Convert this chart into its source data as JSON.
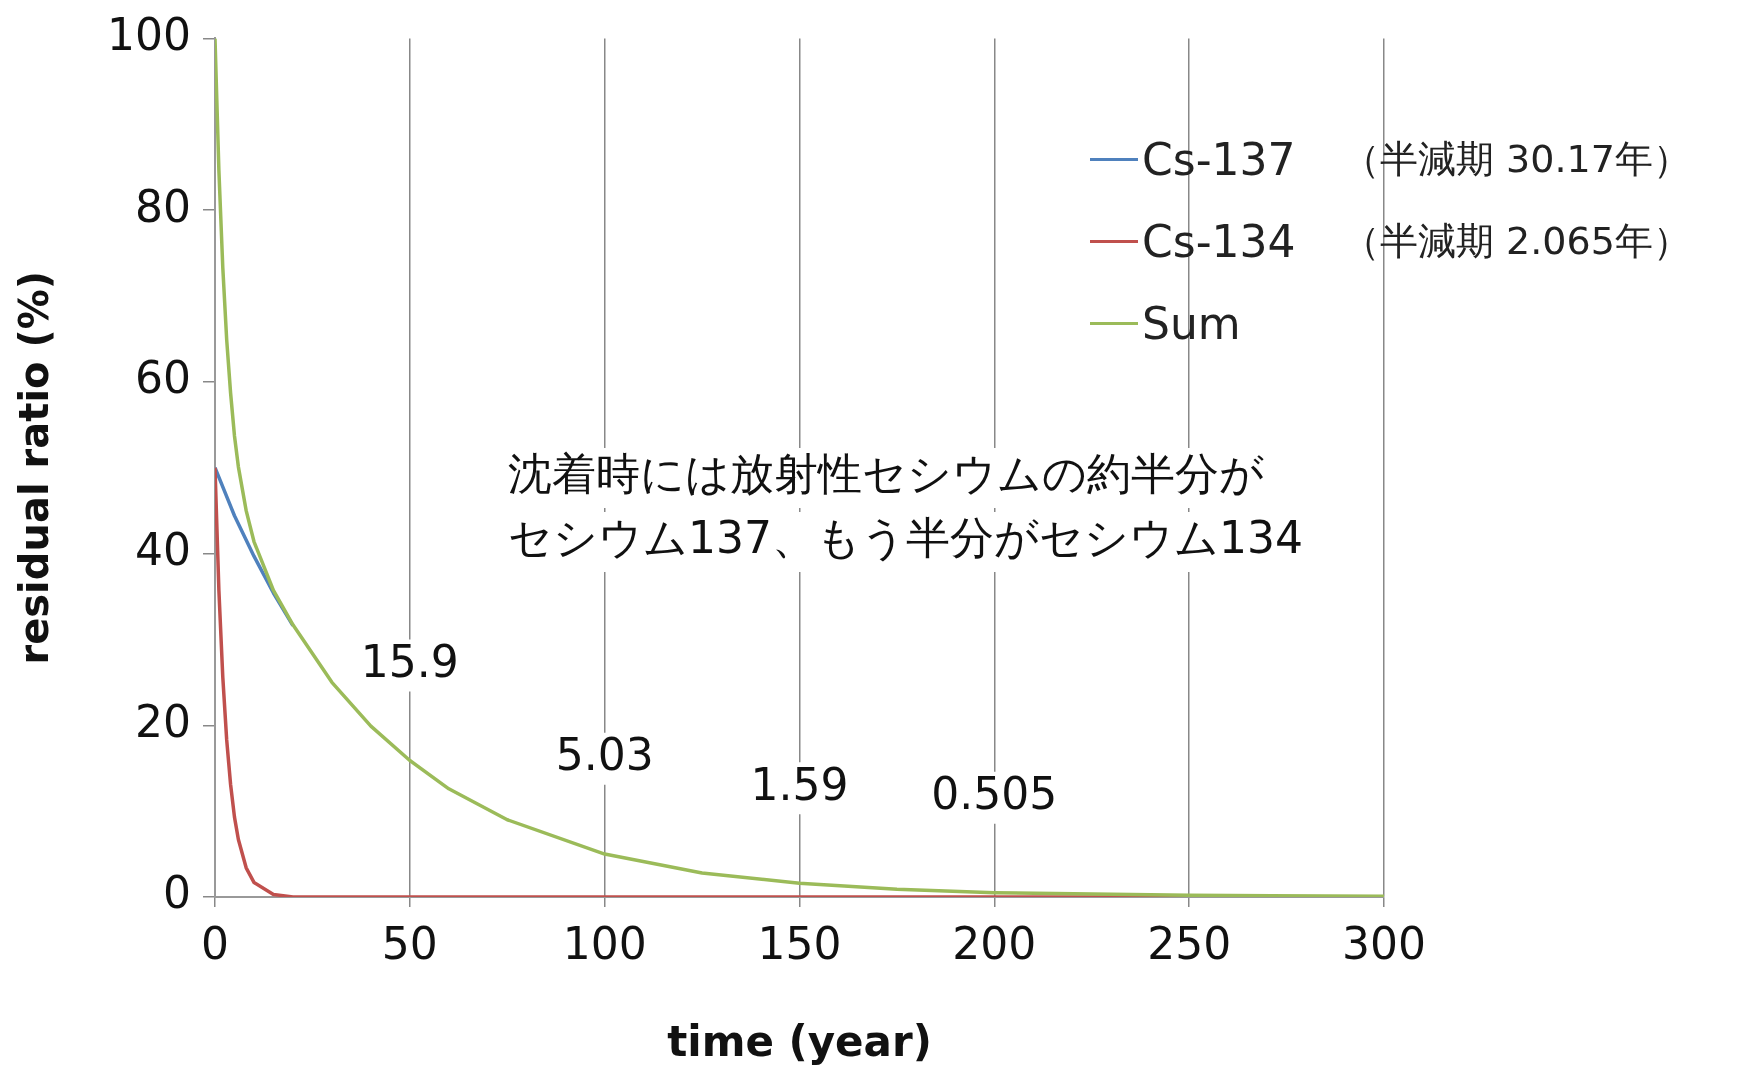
{
  "chart_data": {
    "type": "line",
    "xlabel": "time (year)",
    "ylabel": "residual ratio (%)",
    "xlim": [
      0,
      300
    ],
    "xticks": [
      0,
      50,
      100,
      150,
      200,
      250,
      300
    ],
    "ylim": [
      0,
      100
    ],
    "yticks": [
      0,
      20,
      40,
      60,
      80,
      100
    ],
    "grid": "x",
    "legend": "top right",
    "marker": "none",
    "line_style": "solid",
    "series": [
      {
        "name": "Cs-137",
        "color": "#4f81bd",
        "x": [
          0,
          5,
          10,
          15,
          20
        ],
        "values": [
          50,
          44.4,
          39.7,
          35.4,
          31.6
        ]
      },
      {
        "name": "Cs-134",
        "color": "#c0504d",
        "x": [
          0,
          1,
          2,
          3,
          4,
          5,
          6,
          8,
          10,
          15,
          20,
          30,
          300
        ],
        "values": [
          50,
          35.7,
          25.6,
          18.3,
          13.1,
          9.3,
          6.7,
          3.4,
          1.7,
          0.3,
          0,
          0,
          0
        ]
      },
      {
        "name": "Sum",
        "color": "#9bbb59",
        "x": [
          0,
          1,
          2,
          3,
          4,
          5,
          6,
          8,
          10,
          15,
          20,
          30,
          40,
          50,
          60,
          75,
          100,
          125,
          150,
          175,
          200,
          250,
          300
        ],
        "values": [
          100,
          84.6,
          73.3,
          64.9,
          58.7,
          53.7,
          50.1,
          45.0,
          41.4,
          35.7,
          31.7,
          25.0,
          19.9,
          15.9,
          12.6,
          9.0,
          5.0,
          2.8,
          1.6,
          0.9,
          0.5,
          0.2,
          0.1
        ]
      }
    ],
    "annotations": [
      "（半減期 30.17年）",
      "（半減期 2.065年）",
      "沈着時には放射性セシウムの約半分が",
      "セシウム137、もう半分がセシウム134",
      {
        "text": "15.9",
        "x": 50,
        "y": 15.9
      },
      {
        "text": "5.03",
        "x": 100,
        "y": 5.03
      },
      {
        "text": "1.59",
        "x": 150,
        "y": 1.59
      },
      {
        "text": "0.505",
        "x": 200,
        "y": 0.505
      }
    ]
  }
}
